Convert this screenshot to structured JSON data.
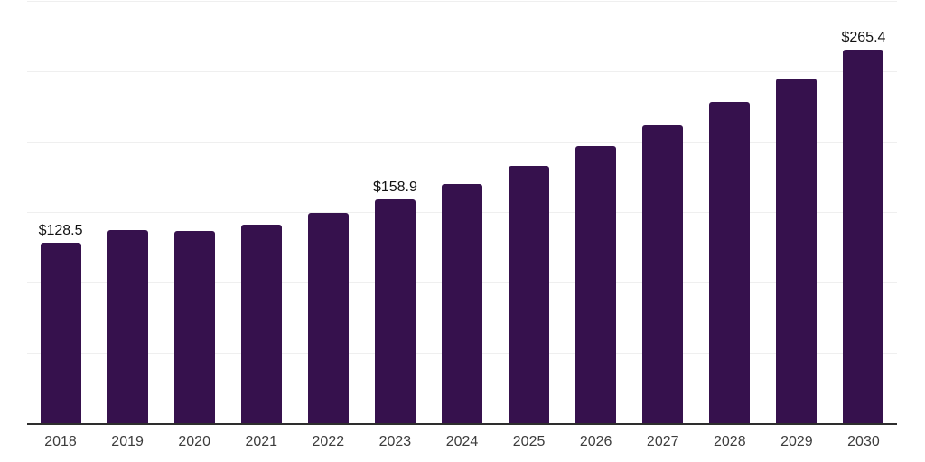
{
  "chart_data": {
    "type": "bar",
    "categories": [
      "2018",
      "2019",
      "2020",
      "2021",
      "2022",
      "2023",
      "2024",
      "2025",
      "2026",
      "2027",
      "2028",
      "2029",
      "2030"
    ],
    "values": [
      128.5,
      137.2,
      136.4,
      141.0,
      149.6,
      158.9,
      169.9,
      183.0,
      196.8,
      211.4,
      228.4,
      245.1,
      265.4
    ],
    "data_labels": {
      "2018": "$128.5",
      "2023": "$158.9",
      "2030": "$265.4"
    },
    "value_prefix": "$",
    "ylim": [
      0,
      300
    ],
    "gridline_values": [
      50,
      100,
      150,
      200,
      250,
      300
    ],
    "grid": "horizontal",
    "legend": "none",
    "y_axis_tick_labels": [],
    "colors": {
      "bar": "#36114d",
      "gridline": "#efefef",
      "axis_line": "#2e2e2e",
      "tick_label": "#3d3d3d",
      "value_label": "#121212",
      "background": "#ffffff"
    }
  }
}
